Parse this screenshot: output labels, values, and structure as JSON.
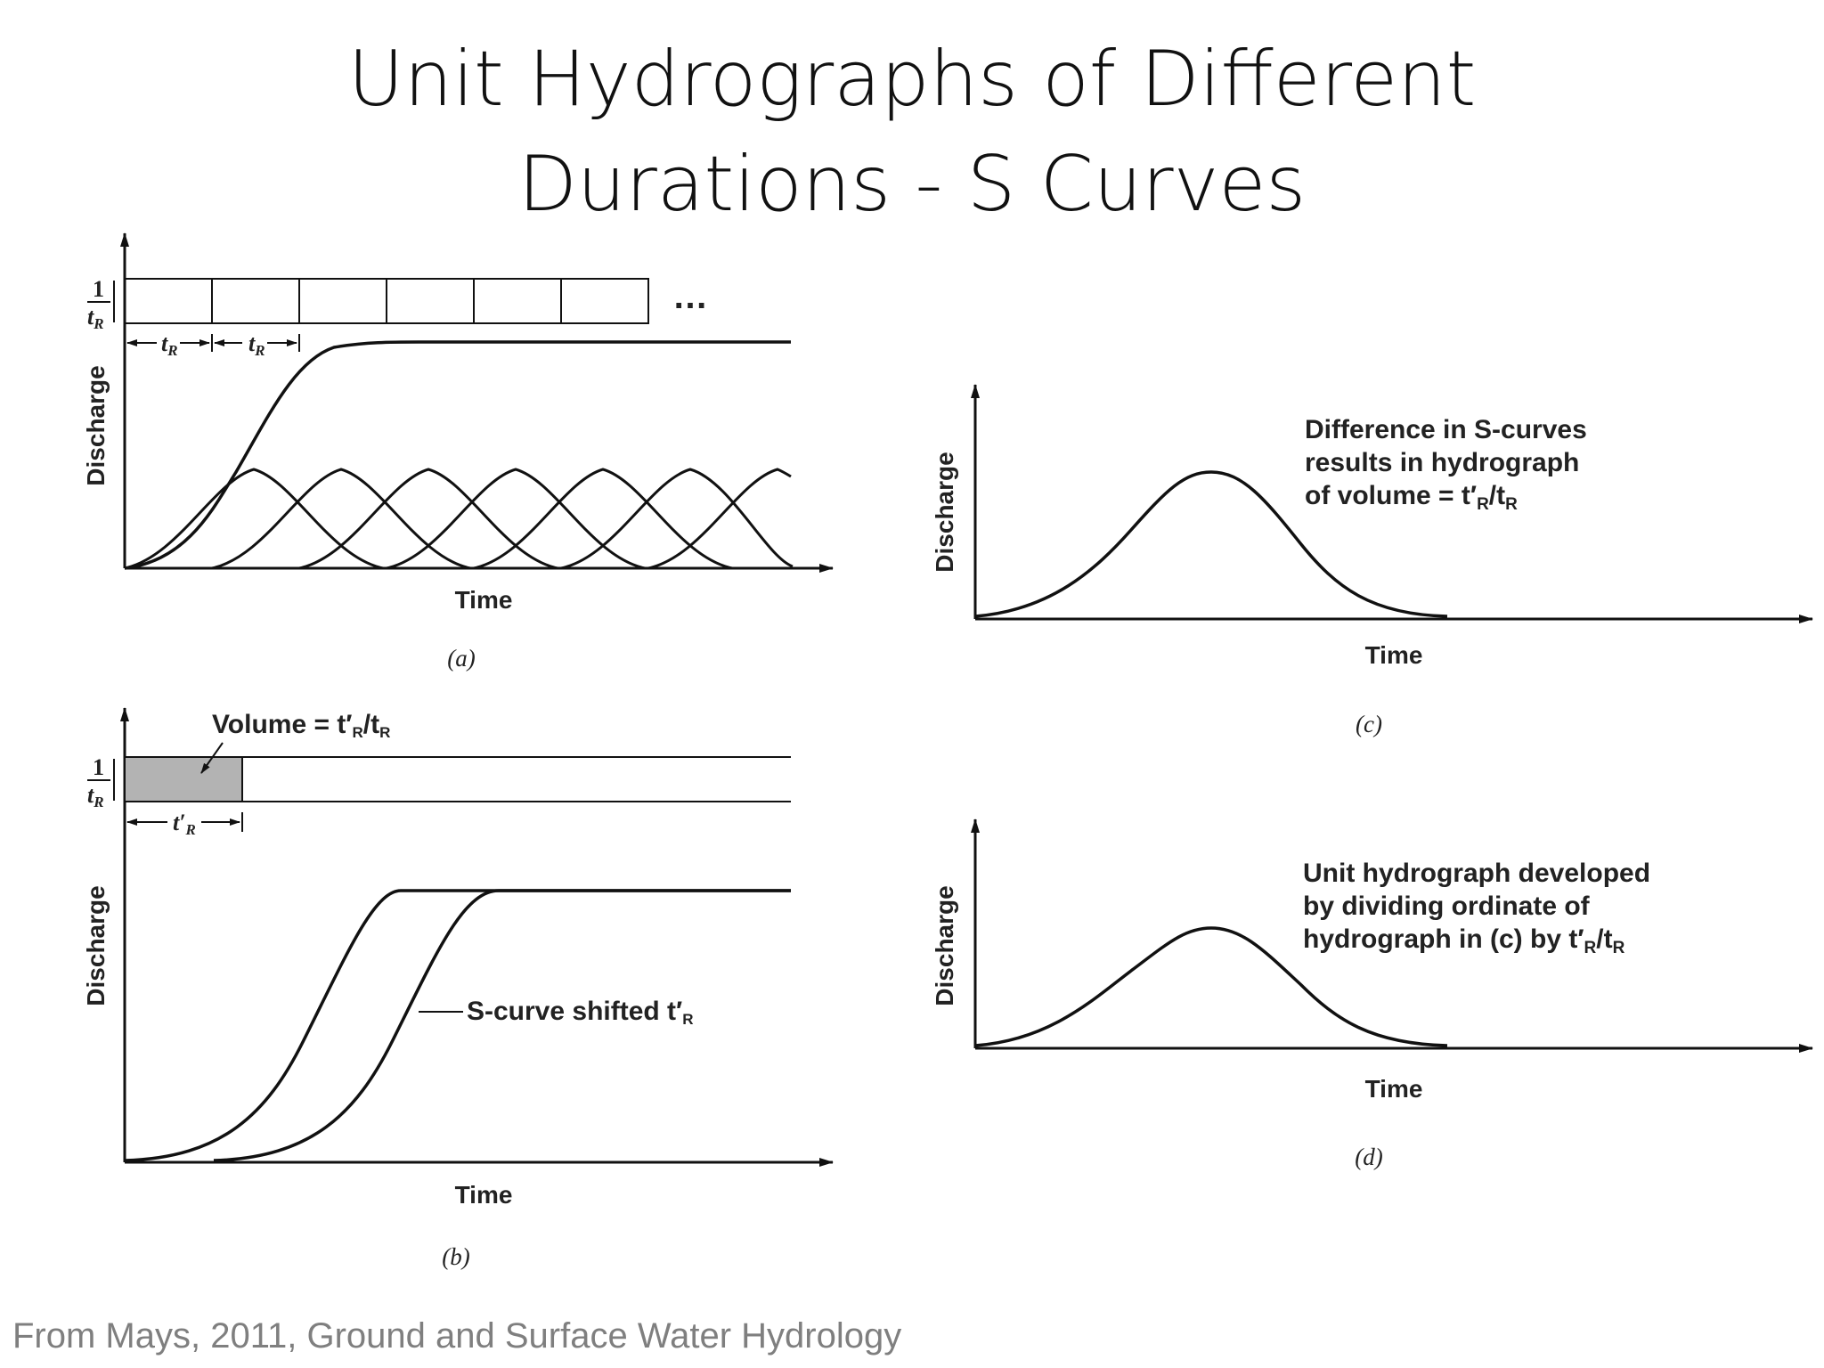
{
  "slide": {
    "title_line1": "Unit Hydrographs of Different",
    "title_line2": "Durations - S Curves",
    "credit": "From Mays, 2011, Ground and Surface Water Hydrology"
  },
  "panel_a": {
    "caption": "(a)",
    "y_label": "Discharge",
    "x_label": "Time",
    "intensity_num": "1",
    "intensity_den": "t",
    "intensity_den_sub": "R",
    "duration_label": "t",
    "duration_sub": "R",
    "ellipsis": "…"
  },
  "panel_b": {
    "caption": "(b)",
    "y_label": "Discharge",
    "x_label": "Time",
    "intensity_num": "1",
    "intensity_den": "t",
    "intensity_den_sub": "R",
    "volume_label": "Volume = t′",
    "volume_label_sub": "R",
    "volume_label_tail": "/t",
    "volume_label_tail_sub": "R",
    "duration_label": "t′",
    "duration_sub": "R",
    "shift_label": "S-curve shifted t′",
    "shift_label_sub": "R"
  },
  "panel_c": {
    "caption": "(c)",
    "y_label": "Discharge",
    "x_label": "Time",
    "note_line1": "Difference in S-curves",
    "note_line2": "results in hydrograph",
    "note_line3": "of volume = t′",
    "note_line3_sub": "R",
    "note_line3_tail": "/t",
    "note_line3_tail_sub": "R"
  },
  "panel_d": {
    "caption": "(d)",
    "y_label": "Discharge",
    "x_label": "Time",
    "note_line1": "Unit hydrograph developed",
    "note_line2": "by dividing ordinate of",
    "note_line3": "hydrograph in (c) by t′",
    "note_line3_sub": "R",
    "note_line3_tail": "/t",
    "note_line3_tail_sub": "R"
  }
}
